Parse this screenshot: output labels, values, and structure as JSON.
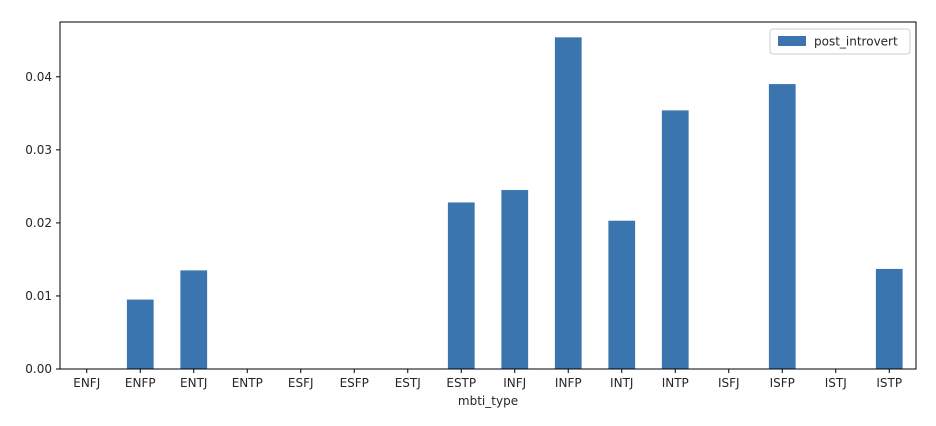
{
  "chart_data": {
    "type": "bar",
    "title": "",
    "xlabel": "mbti_type",
    "ylabel": "",
    "categories": [
      "ENFJ",
      "ENFP",
      "ENTJ",
      "ENTP",
      "ESFJ",
      "ESFP",
      "ESTJ",
      "ESTP",
      "INFJ",
      "INFP",
      "INTJ",
      "INTP",
      "ISFJ",
      "ISFP",
      "ISTJ",
      "ISTP"
    ],
    "series": [
      {
        "name": "post_introvert",
        "color": "#3a75af",
        "values": [
          0.0,
          0.0095,
          0.0135,
          0.0,
          0.0,
          0.0,
          0.0,
          0.0228,
          0.0245,
          0.0454,
          0.0203,
          0.0354,
          0.0,
          0.039,
          0.0,
          0.0137
        ]
      }
    ],
    "ylim": [
      0,
      0.0475
    ],
    "yticks": [
      0.0,
      0.01,
      0.02,
      0.03,
      0.04
    ],
    "ytick_labels": [
      "0.00",
      "0.01",
      "0.02",
      "0.03",
      "0.04"
    ],
    "grid": false,
    "legend_position": "upper right"
  }
}
